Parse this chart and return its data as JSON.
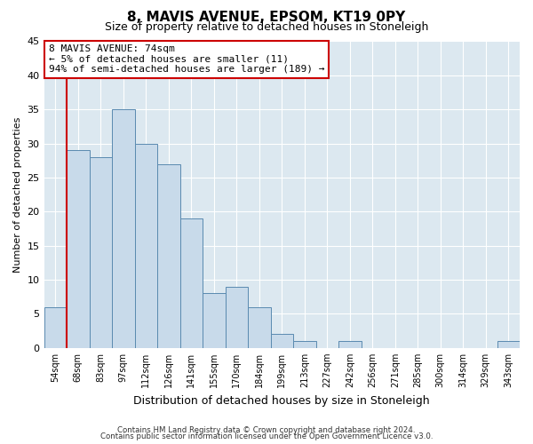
{
  "title": "8, MAVIS AVENUE, EPSOM, KT19 0PY",
  "subtitle": "Size of property relative to detached houses in Stoneleigh",
  "xlabel": "Distribution of detached houses by size in Stoneleigh",
  "ylabel": "Number of detached properties",
  "bin_labels": [
    "54sqm",
    "68sqm",
    "83sqm",
    "97sqm",
    "112sqm",
    "126sqm",
    "141sqm",
    "155sqm",
    "170sqm",
    "184sqm",
    "199sqm",
    "213sqm",
    "227sqm",
    "242sqm",
    "256sqm",
    "271sqm",
    "285sqm",
    "300sqm",
    "314sqm",
    "329sqm",
    "343sqm"
  ],
  "bar_heights": [
    6,
    29,
    28,
    35,
    30,
    27,
    19,
    8,
    9,
    6,
    2,
    1,
    0,
    1,
    0,
    0,
    0,
    0,
    0,
    0,
    1
  ],
  "bar_color": "#c8daea",
  "bar_edge_color": "#5a8ab0",
  "vline_x_index": 1,
  "vline_color": "#cc0000",
  "ylim": [
    0,
    45
  ],
  "yticks": [
    0,
    5,
    10,
    15,
    20,
    25,
    30,
    35,
    40,
    45
  ],
  "annotation_title": "8 MAVIS AVENUE: 74sqm",
  "annotation_line1": "← 5% of detached houses are smaller (11)",
  "annotation_line2": "94% of semi-detached houses are larger (189) →",
  "annotation_box_color": "#ffffff",
  "annotation_box_edge": "#cc0000",
  "footnote1": "Contains HM Land Registry data © Crown copyright and database right 2024.",
  "footnote2": "Contains public sector information licensed under the Open Government Licence v3.0.",
  "fig_background_color": "#ffffff",
  "plot_background_color": "#dce8f0",
  "grid_color": "#ffffff",
  "title_fontsize": 11,
  "subtitle_fontsize": 9,
  "ylabel_fontsize": 8,
  "xlabel_fontsize": 9
}
